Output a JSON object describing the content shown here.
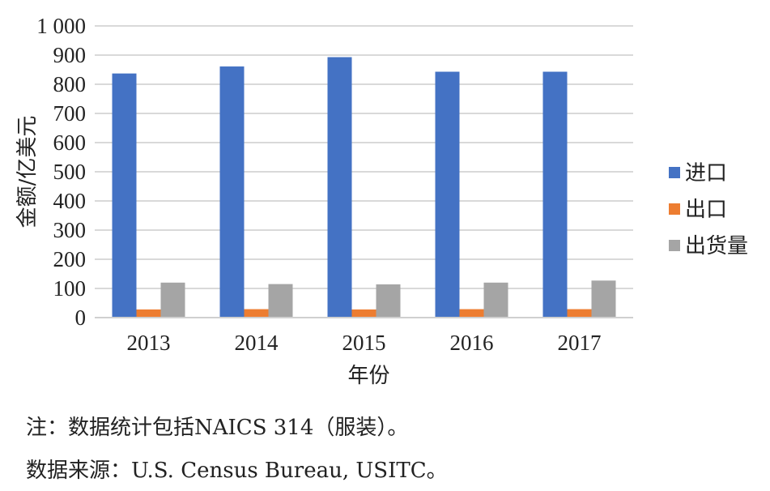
{
  "chart_data": {
    "type": "bar",
    "categories": [
      "2013",
      "2014",
      "2015",
      "2016",
      "2017"
    ],
    "series": [
      {
        "name": "进口",
        "color": "#4472C4",
        "values": [
          837,
          861,
          893,
          843,
          843
        ]
      },
      {
        "name": "出口",
        "color": "#ED7D31",
        "values": [
          28,
          29,
          28,
          29,
          29
        ]
      },
      {
        "name": "出货量",
        "color": "#A5A5A5",
        "values": [
          120,
          115,
          114,
          120,
          127
        ]
      }
    ],
    "xlabel": "年份",
    "ylabel": "金额/亿美元",
    "ylim": [
      0,
      1000
    ],
    "yticks": [
      0,
      100,
      200,
      300,
      400,
      500,
      600,
      700,
      800,
      900,
      1000
    ],
    "ytick_labels": [
      "0",
      "100",
      "200",
      "300",
      "400",
      "500",
      "600",
      "700",
      "800",
      "900",
      "1 000"
    ],
    "grid": true,
    "legend_position": "right"
  },
  "notes": {
    "note1": "注：数据统计包括NAICS 314（服装）。",
    "note2": "数据来源：U.S. Census Bureau, USITC。"
  }
}
